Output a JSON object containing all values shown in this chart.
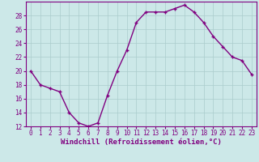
{
  "hours": [
    0,
    1,
    2,
    3,
    4,
    5,
    6,
    7,
    8,
    9,
    10,
    11,
    12,
    13,
    14,
    15,
    16,
    17,
    18,
    19,
    20,
    21,
    22,
    23
  ],
  "values": [
    20,
    18,
    17.5,
    17,
    14,
    12.5,
    12,
    12.5,
    16.5,
    20,
    23,
    27,
    28.5,
    28.5,
    28.5,
    29,
    29.5,
    28.5,
    27,
    25,
    23.5,
    22,
    21.5,
    19.5
  ],
  "line_color": "#800080",
  "marker": "+",
  "bg_color": "#cce8e8",
  "grid_color": "#aacccc",
  "xlabel": "Windchill (Refroidissement éolien,°C)",
  "ylim": [
    12,
    30
  ],
  "xlim_min": -0.5,
  "xlim_max": 23.5,
  "yticks": [
    12,
    14,
    16,
    18,
    20,
    22,
    24,
    26,
    28
  ],
  "xticks": [
    0,
    1,
    2,
    3,
    4,
    5,
    6,
    7,
    8,
    9,
    10,
    11,
    12,
    13,
    14,
    15,
    16,
    17,
    18,
    19,
    20,
    21,
    22,
    23
  ],
  "tick_label_fontsize": 5.5,
  "xlabel_fontsize": 6.5,
  "line_width": 1.0,
  "marker_size": 3.5,
  "marker_edge_width": 1.0
}
